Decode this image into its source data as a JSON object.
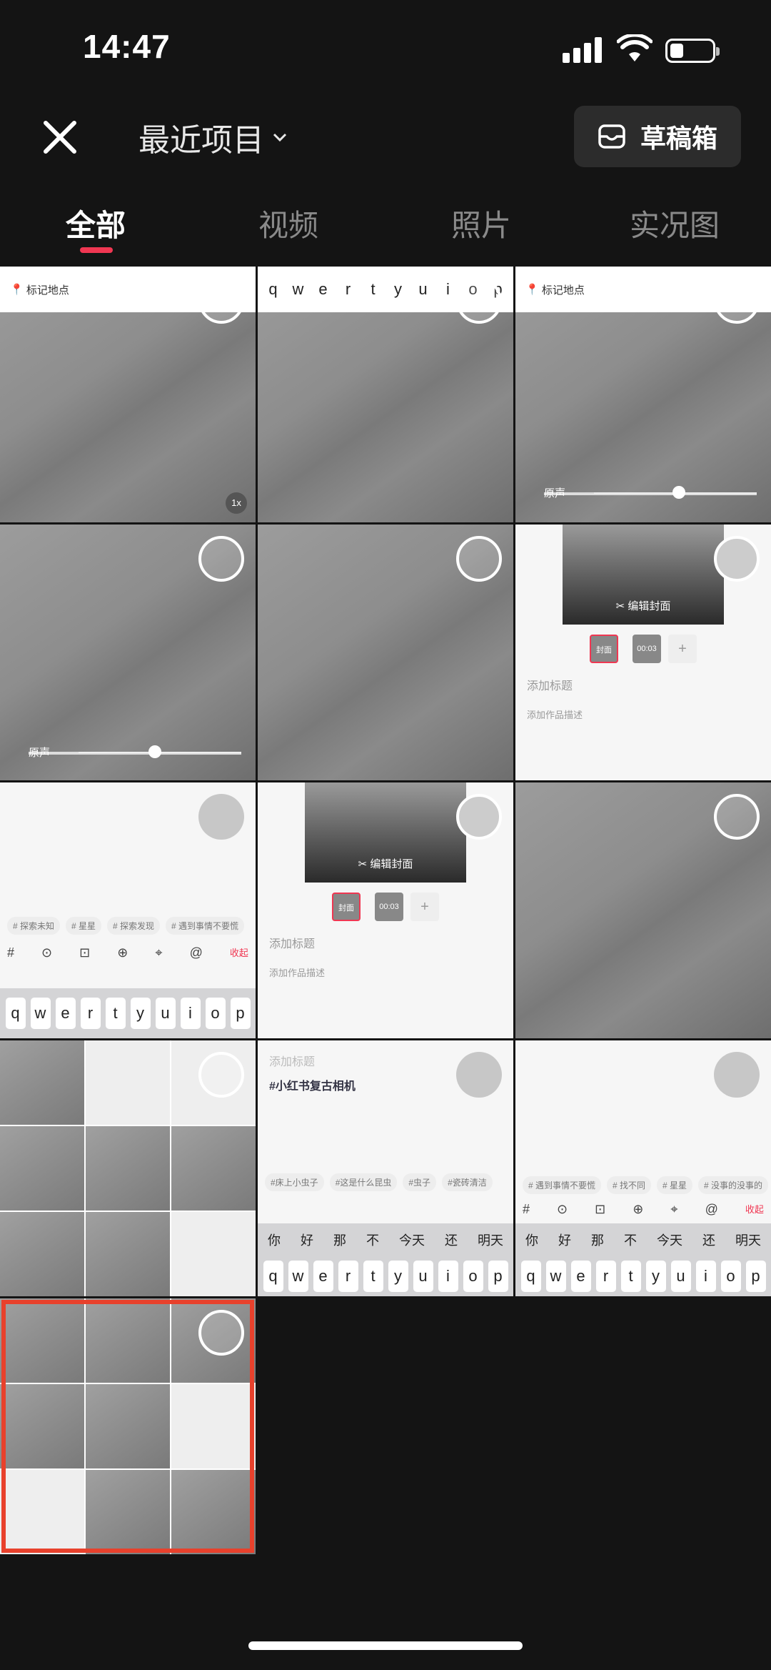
{
  "status": {
    "time": "14:47"
  },
  "header": {
    "title": "最近项目",
    "drafts_label": "草稿箱"
  },
  "tabs": [
    "全部",
    "视频",
    "照片",
    "实况图"
  ],
  "cells": {
    "location_label": "标记地点",
    "keyboard_letters": [
      "q",
      "w",
      "e",
      "r",
      "t",
      "y",
      "u",
      "i",
      "o",
      "p"
    ],
    "slider_label": "原声",
    "edit_cover": "编辑封面",
    "cover_thumb": "封面",
    "thumb_time": "00:03",
    "add_title": "添加标题",
    "add_desc": "添加作品描述",
    "collapse": "收起",
    "hashtag_text": "#小红书复古相机",
    "tags_a": [
      "# 探索未知",
      "# 星星",
      "# 探索发现",
      "# 遇到事情不要慌"
    ],
    "tags_b": [
      "#床上小虫子",
      "#这是什么昆虫",
      "#虫子",
      "#瓷砖清洁"
    ],
    "tags_c": [
      "# 遇到事情不要慌",
      "# 找不同",
      "# 星星",
      "# 没事的没事的"
    ],
    "ime_candidates": [
      "你",
      "好",
      "那",
      "不",
      "今天",
      "还",
      "明天"
    ],
    "speed_badge": "1x"
  }
}
